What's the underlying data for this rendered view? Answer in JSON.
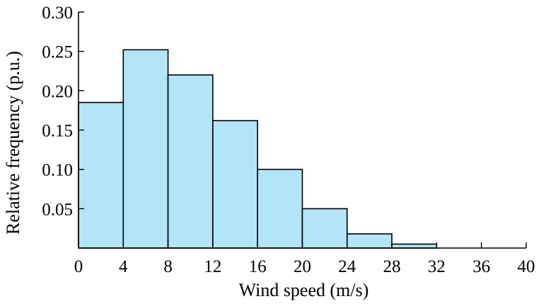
{
  "chart_data": {
    "type": "bar",
    "title": "",
    "xlabel": "Wind speed (m/s)",
    "ylabel": "Relative frequency (p.u.)",
    "bin_edges": [
      0,
      4,
      8,
      12,
      16,
      20,
      24,
      28,
      32,
      36,
      40
    ],
    "values": [
      0.185,
      0.252,
      0.22,
      0.162,
      0.1,
      0.05,
      0.018,
      0.005,
      0,
      0
    ],
    "xlim": [
      0,
      40
    ],
    "ylim": [
      0,
      0.3
    ],
    "xticks": [
      0,
      4,
      8,
      12,
      16,
      20,
      24,
      28,
      32,
      36,
      40
    ],
    "xtick_labels": [
      "0",
      "4",
      "8",
      "12",
      "16",
      "20",
      "24",
      "28",
      "32",
      "36",
      "40"
    ],
    "yticks": [
      0.05,
      0.1,
      0.15,
      0.2,
      0.25,
      0.3
    ],
    "ytick_labels": [
      "0.05",
      "0.10",
      "0.15",
      "0.20",
      "0.25",
      "0.30"
    ],
    "grid": false,
    "bar_color": "#b3e5f9",
    "edge_color": "#000000"
  }
}
